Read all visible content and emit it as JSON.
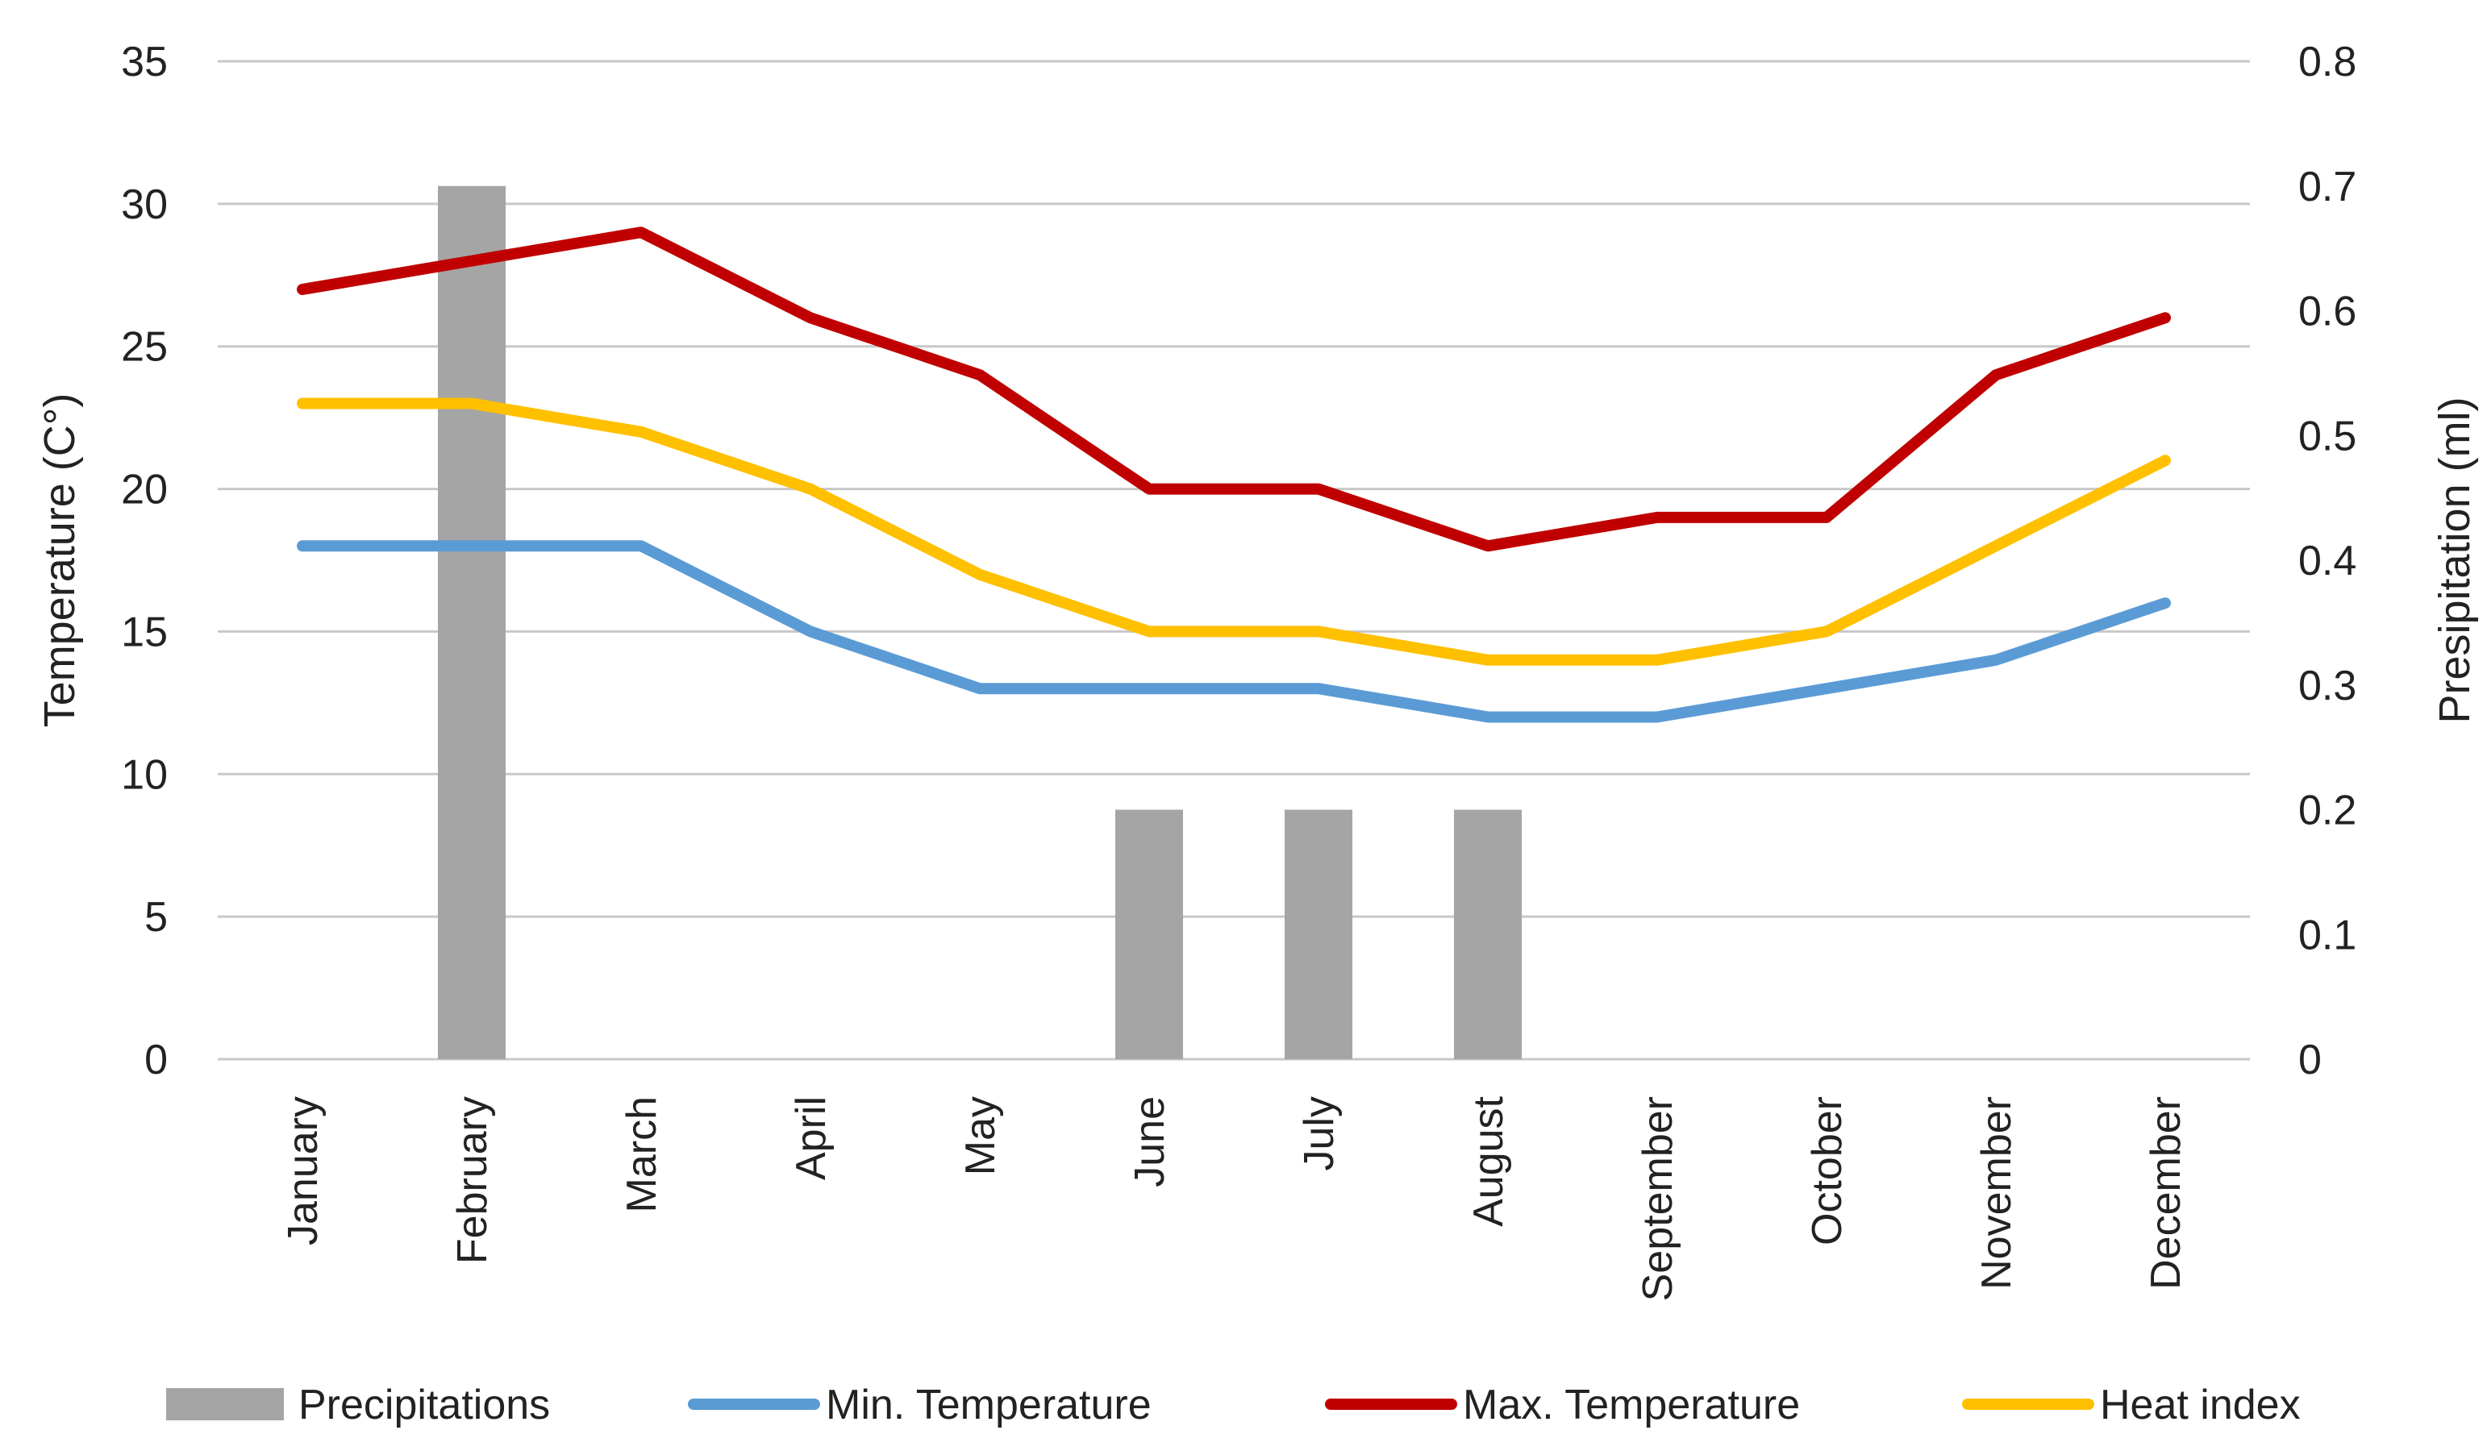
{
  "chart_data": {
    "type": "bar+line",
    "title": "",
    "categories": [
      "January",
      "February",
      "March",
      "April",
      "May",
      "June",
      "July",
      "August",
      "September",
      "October",
      "November",
      "December"
    ],
    "y_left": {
      "label": "Temperature (C°)",
      "range": [
        0,
        35
      ],
      "ticks": [
        0,
        5,
        10,
        15,
        20,
        25,
        30,
        35
      ],
      "tick_labels": [
        "0",
        "5",
        "10",
        "15",
        "20",
        "25",
        "30",
        "35"
      ]
    },
    "y_right": {
      "label": "Presipitation (ml)",
      "range": [
        0,
        0.8
      ],
      "ticks": [
        0,
        0.1,
        0.2,
        0.3,
        0.4,
        0.5,
        0.6,
        0.7,
        0.8
      ],
      "tick_labels": [
        "0",
        "0.1",
        "0.2",
        "0.3",
        "0.4",
        "0.5",
        "0.6",
        "0.7",
        "0.8"
      ]
    },
    "grid": true,
    "legend_position": "bottom",
    "series": [
      {
        "name": "Precipitations",
        "kind": "bar",
        "axis": "right",
        "color": "#a5a5a5",
        "values": [
          0,
          0.7,
          0,
          0,
          0,
          0.2,
          0.2,
          0.2,
          0,
          0,
          0,
          0
        ]
      },
      {
        "name": "Min. Temperature",
        "kind": "line",
        "axis": "left",
        "color": "#5b9bd5",
        "values": [
          18,
          18,
          18,
          15,
          13,
          13,
          13,
          12,
          12,
          13,
          14,
          16
        ]
      },
      {
        "name": "Max. Temperature",
        "kind": "line",
        "axis": "left",
        "color": "#c00000",
        "values": [
          27,
          28,
          29,
          26,
          24,
          20,
          20,
          18,
          19,
          19,
          24,
          26
        ]
      },
      {
        "name": "Heat index",
        "kind": "line",
        "axis": "left",
        "color": "#ffc000",
        "values": [
          23,
          23,
          22,
          20,
          17,
          15,
          15,
          14,
          14,
          15,
          18,
          21
        ]
      }
    ]
  }
}
